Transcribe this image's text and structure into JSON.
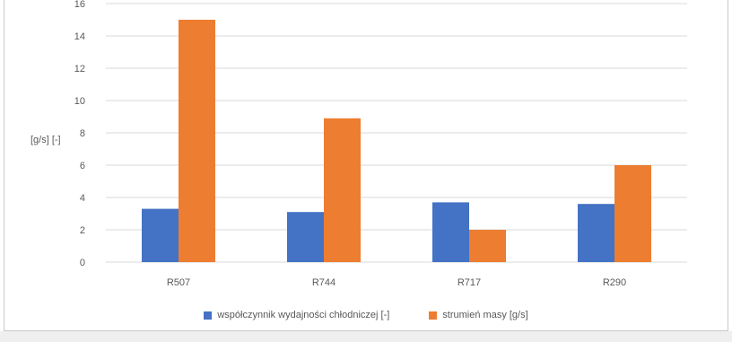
{
  "chart_data": {
    "type": "bar",
    "title": "",
    "xlabel": "",
    "ylabel": "[g/s] [-]",
    "categories": [
      "R507",
      "R744",
      "R717",
      "R290"
    ],
    "series": [
      {
        "name": "współczynnik wydajności chłodniczej [-]",
        "values": [
          3.3,
          3.1,
          3.7,
          3.6
        ],
        "color": "#4472c4"
      },
      {
        "name": "strumień masy [g/s]",
        "values": [
          15.0,
          8.9,
          2.0,
          6.0
        ],
        "color": "#ed7d31"
      }
    ],
    "ylim": [
      0,
      16
    ],
    "yticks": [
      "0",
      "2",
      "4",
      "6",
      "8",
      "10",
      "12",
      "14",
      "16"
    ],
    "grid": true,
    "legend_position": "bottom"
  }
}
